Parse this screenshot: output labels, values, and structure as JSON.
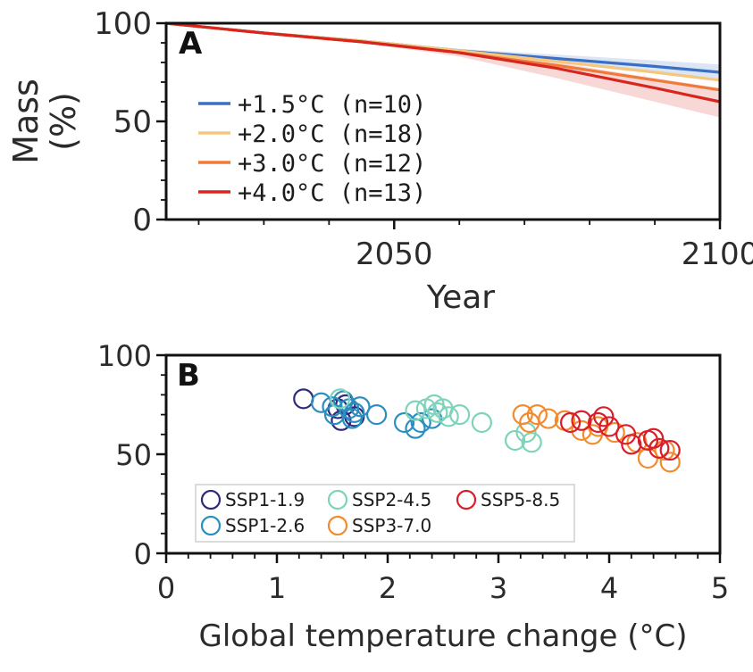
{
  "chart_data": [
    {
      "panel": "A",
      "type": "line",
      "xlabel": "Year",
      "ylabel": "Mass\n(%)",
      "xlim": [
        2015,
        2100
      ],
      "ylim": [
        0,
        100
      ],
      "xticks": [
        2050,
        2100
      ],
      "yticks": [
        0,
        50,
        100
      ],
      "x": [
        2015,
        2030,
        2045,
        2060,
        2075,
        2090,
        2100
      ],
      "series": [
        {
          "name": "+1.5°C (n=10)",
          "color": "#3a6fc4",
          "values": [
            100,
            95,
            91,
            86,
            82,
            78,
            75
          ],
          "band_low": [
            100,
            95,
            91,
            86,
            80,
            75,
            71
          ],
          "band_high": [
            100,
            95,
            91,
            87,
            84,
            81,
            79
          ]
        },
        {
          "name": "+2.0°C (n=18)",
          "color": "#f5c77e",
          "values": [
            100,
            95,
            91,
            86,
            80.5,
            75,
            71
          ]
        },
        {
          "name": "+3.0°C (n=12)",
          "color": "#f07a3a",
          "values": [
            100,
            95,
            90.5,
            85,
            78.5,
            71,
            66
          ]
        },
        {
          "name": "+4.0°C (n=13)",
          "color": "#d7261e",
          "values": [
            100,
            95,
            90.5,
            85,
            77,
            67,
            60
          ],
          "band_low": [
            100,
            95,
            90,
            83,
            72,
            60,
            52
          ],
          "band_high": [
            100,
            95,
            91,
            86,
            80,
            72,
            67
          ]
        }
      ],
      "legend_placement": "lower-left"
    },
    {
      "panel": "B",
      "type": "scatter",
      "xlabel": "Global temperature change (°C)",
      "ylabel": "",
      "xlim": [
        0,
        5
      ],
      "ylim": [
        0,
        100
      ],
      "xticks": [
        0,
        1,
        2,
        3,
        4,
        5
      ],
      "yticks": [
        0,
        50,
        100
      ],
      "legend_placement": "lower-left",
      "series": [
        {
          "name": "SSP1-1.9",
          "color": "#2e2b7a",
          "points": [
            [
              1.24,
              78
            ],
            [
              1.55,
              73
            ],
            [
              1.58,
              67
            ],
            [
              1.7,
              69
            ],
            [
              1.62,
              75
            ]
          ]
        },
        {
          "name": "SSP1-2.6",
          "color": "#2a8fc0",
          "points": [
            [
              1.4,
              76
            ],
            [
              1.5,
              74
            ],
            [
              1.52,
              70
            ],
            [
              1.6,
              77
            ],
            [
              1.65,
              73
            ],
            [
              1.7,
              71
            ],
            [
              1.75,
              74
            ],
            [
              1.68,
              68
            ],
            [
              1.9,
              70
            ],
            [
              2.15,
              66
            ],
            [
              2.25,
              63
            ],
            [
              2.3,
              66
            ],
            [
              2.4,
              68
            ]
          ]
        },
        {
          "name": "SSP2-4.5",
          "color": "#7fd3bb",
          "points": [
            [
              1.57,
              78
            ],
            [
              2.25,
              72
            ],
            [
              2.35,
              73
            ],
            [
              2.42,
              75
            ],
            [
              2.45,
              71
            ],
            [
              2.5,
              73
            ],
            [
              2.55,
              69
            ],
            [
              2.65,
              70
            ],
            [
              2.85,
              66
            ],
            [
              3.15,
              57
            ],
            [
              3.25,
              61
            ],
            [
              3.3,
              56
            ]
          ]
        },
        {
          "name": "SSP3-7.0",
          "color": "#f28b2f",
          "points": [
            [
              3.22,
              70
            ],
            [
              3.28,
              66
            ],
            [
              3.35,
              70
            ],
            [
              3.45,
              68
            ],
            [
              3.6,
              67
            ],
            [
              3.75,
              62
            ],
            [
              3.85,
              60
            ],
            [
              3.9,
              64
            ],
            [
              4.05,
              61
            ],
            [
              4.25,
              56
            ],
            [
              4.35,
              48
            ],
            [
              4.5,
              52
            ],
            [
              4.55,
              46
            ]
          ]
        },
        {
          "name": "SSP5-8.5",
          "color": "#d91e2a",
          "points": [
            [
              3.65,
              66
            ],
            [
              3.75,
              67
            ],
            [
              3.9,
              66
            ],
            [
              3.95,
              69
            ],
            [
              4.0,
              64
            ],
            [
              4.15,
              60
            ],
            [
              4.2,
              55
            ],
            [
              4.35,
              57
            ],
            [
              4.4,
              58
            ],
            [
              4.45,
              53
            ],
            [
              4.55,
              52
            ]
          ]
        }
      ]
    }
  ]
}
